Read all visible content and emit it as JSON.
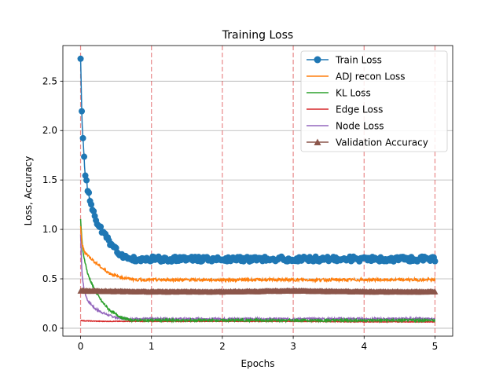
{
  "chart_data": {
    "type": "line",
    "title": "Training Loss",
    "xlabel": "Epochs",
    "ylabel": "Loss, Accuracy",
    "xlim": [
      -0.25,
      5.25
    ],
    "ylim": [
      -0.08,
      2.86
    ],
    "xticks": [
      0,
      1,
      2,
      3,
      4,
      5
    ],
    "yticks": [
      0.0,
      0.5,
      1.0,
      1.5,
      2.0,
      2.5
    ],
    "ytick_labels": [
      "0.0",
      "0.5",
      "1.0",
      "1.5",
      "2.0",
      "2.5"
    ],
    "xtick_labels": [
      "0",
      "1",
      "2",
      "3",
      "4",
      "5"
    ],
    "grid": "y",
    "epoch_markers": [
      0,
      1,
      2,
      3,
      4,
      5
    ],
    "legend_position": "top-right",
    "series": [
      {
        "name": "Train Loss",
        "color": "#1f77b4",
        "marker": "circle",
        "x": [
          0,
          0.01,
          0.02,
          0.04,
          0.06,
          0.1,
          0.15,
          0.2,
          0.3,
          0.4,
          0.5,
          0.6,
          0.7,
          0.8,
          1,
          1.5,
          2,
          2.5,
          3,
          3.5,
          4,
          4.5,
          5
        ],
        "values": [
          2.72,
          2.4,
          2.1,
          1.85,
          1.6,
          1.4,
          1.25,
          1.12,
          0.98,
          0.88,
          0.79,
          0.73,
          0.71,
          0.7,
          0.7,
          0.7,
          0.7,
          0.7,
          0.7,
          0.7,
          0.7,
          0.7,
          0.7
        ],
        "noise": 0.025
      },
      {
        "name": "ADJ recon Loss",
        "color": "#ff7f0e",
        "marker": "none",
        "x": [
          0,
          0.02,
          0.05,
          0.1,
          0.2,
          0.3,
          0.4,
          0.5,
          0.6,
          0.8,
          1,
          2,
          3,
          4,
          5
        ],
        "values": [
          1.02,
          0.85,
          0.78,
          0.74,
          0.67,
          0.61,
          0.56,
          0.53,
          0.51,
          0.49,
          0.49,
          0.49,
          0.49,
          0.49,
          0.49
        ],
        "noise": 0.014
      },
      {
        "name": "KL Loss",
        "color": "#2ca02c",
        "marker": "none",
        "x": [
          0,
          0.03,
          0.1,
          0.2,
          0.3,
          0.4,
          0.5,
          0.6,
          0.7,
          0.8,
          1,
          2,
          3,
          4,
          5
        ],
        "values": [
          1.1,
          0.78,
          0.55,
          0.38,
          0.27,
          0.19,
          0.14,
          0.1,
          0.085,
          0.08,
          0.08,
          0.08,
          0.08,
          0.08,
          0.08
        ],
        "noise": 0.012
      },
      {
        "name": "Edge Loss",
        "color": "#d62728",
        "marker": "none",
        "x": [
          0,
          0.05,
          0.3,
          1,
          2,
          3,
          4,
          5
        ],
        "values": [
          0.08,
          0.075,
          0.07,
          0.07,
          0.07,
          0.07,
          0.065,
          0.065
        ],
        "noise": 0.003
      },
      {
        "name": "Node Loss",
        "color": "#9467bd",
        "marker": "none",
        "x": [
          0,
          0.02,
          0.05,
          0.1,
          0.2,
          0.3,
          0.4,
          0.5,
          0.6,
          0.7,
          0.8,
          1,
          2,
          3,
          4,
          5
        ],
        "values": [
          0.95,
          0.55,
          0.38,
          0.28,
          0.2,
          0.16,
          0.13,
          0.11,
          0.1,
          0.095,
          0.095,
          0.095,
          0.095,
          0.095,
          0.095,
          0.095
        ],
        "noise": 0.01
      },
      {
        "name": "Validation Accuracy",
        "color": "#8c564b",
        "marker": "triangle",
        "x": [
          0,
          1,
          2,
          3,
          4,
          5
        ],
        "values": [
          0.38,
          0.37,
          0.37,
          0.38,
          0.37,
          0.37
        ],
        "noise": 0.004
      }
    ]
  }
}
